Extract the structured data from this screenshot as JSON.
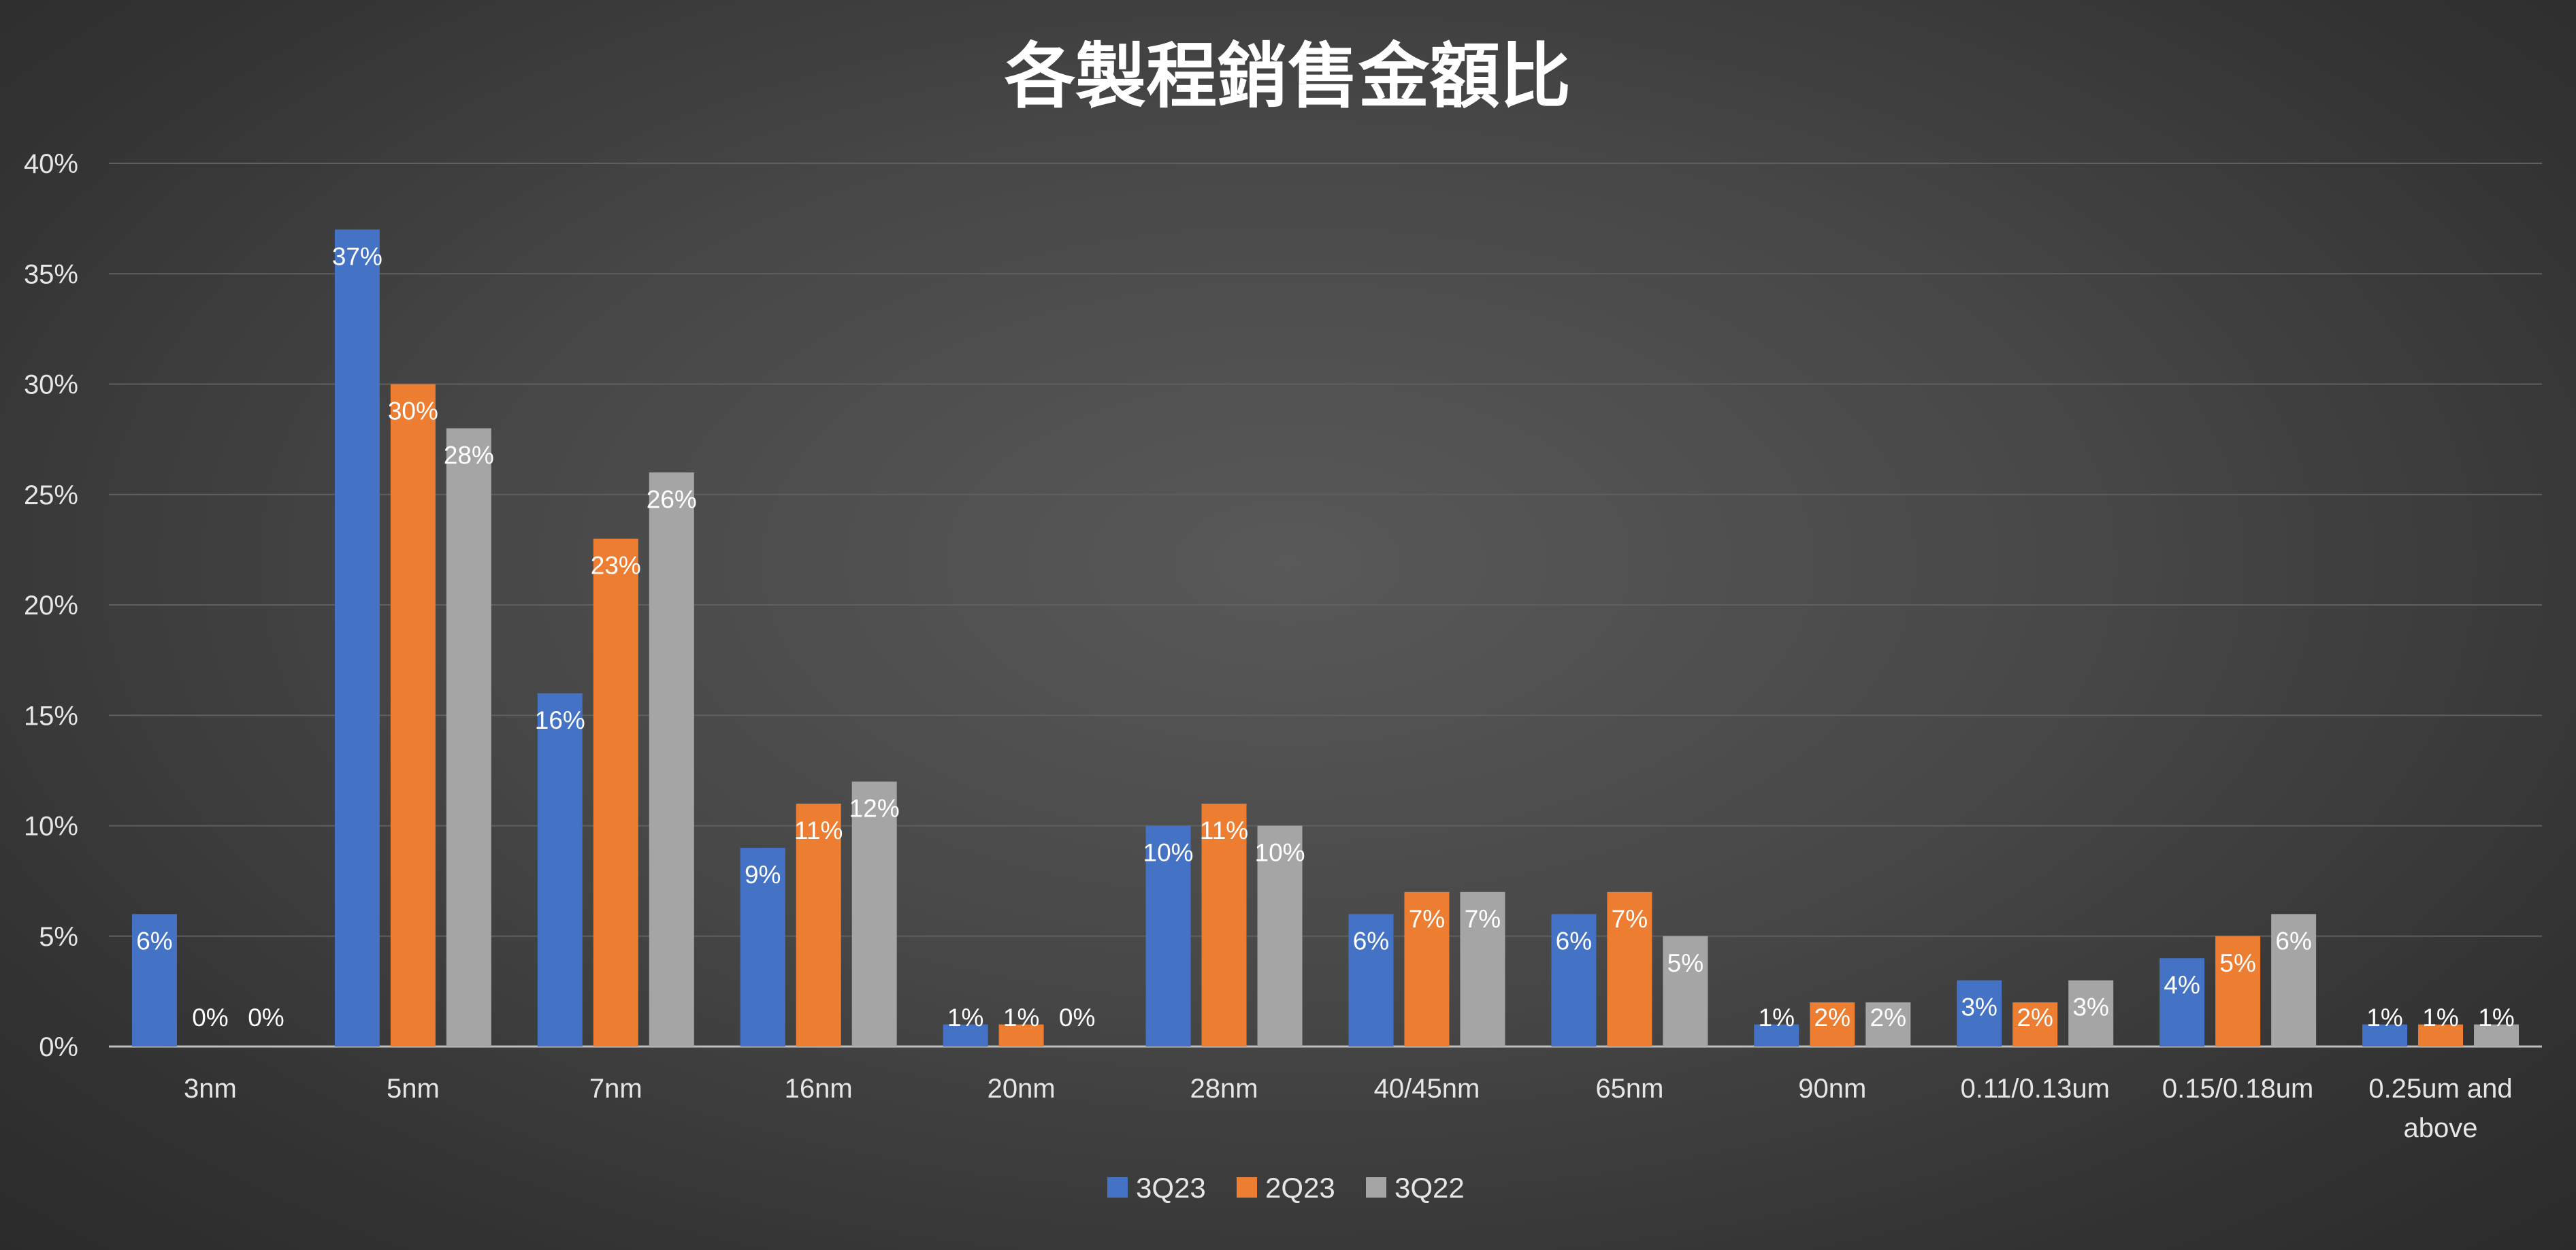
{
  "colors": {
    "series_1": "#4472c4",
    "series_2": "#ed7d31",
    "series_3": "#a5a5a5",
    "gridline": "#5f5f5f",
    "axis_line": "#bfbfbf",
    "text": "#e6e6e6",
    "title": "#ffffff"
  },
  "chart_data": {
    "type": "bar",
    "title": "各製程銷售金額比",
    "xlabel": "",
    "ylabel": "",
    "ylim": [
      0,
      40
    ],
    "y_ticks": [
      "0%",
      "5%",
      "10%",
      "15%",
      "20%",
      "25%",
      "30%",
      "35%",
      "40%"
    ],
    "grid": true,
    "legend_position": "bottom",
    "categories": [
      "3nm",
      "5nm",
      "7nm",
      "16nm",
      "20nm",
      "28nm",
      "40/45nm",
      "65nm",
      "90nm",
      "0.11/0.13um",
      "0.15/0.18um",
      "0.25um and above"
    ],
    "series": [
      {
        "name": "3Q23",
        "values": [
          6,
          37,
          16,
          9,
          1,
          10,
          6,
          6,
          1,
          3,
          4,
          1
        ]
      },
      {
        "name": "2Q23",
        "values": [
          0,
          30,
          23,
          11,
          1,
          11,
          7,
          7,
          2,
          2,
          5,
          1
        ]
      },
      {
        "name": "3Q22",
        "values": [
          0,
          28,
          26,
          12,
          0,
          10,
          7,
          5,
          2,
          3,
          6,
          1
        ]
      }
    ],
    "value_suffix": "%"
  }
}
